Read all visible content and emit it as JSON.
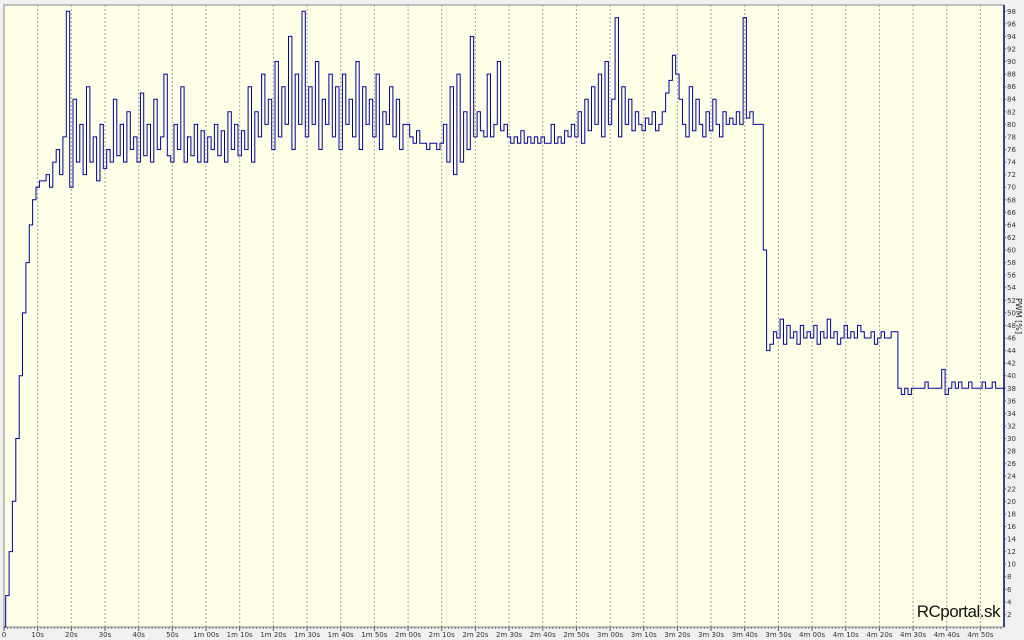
{
  "chart_data": {
    "type": "line",
    "title": "",
    "xlabel": "",
    "ylabel": "PWM [%]",
    "xlim": [
      0,
      297
    ],
    "ylim": [
      0,
      99
    ],
    "grid": {
      "vertical": true,
      "horizontal": false,
      "style": "dashed"
    },
    "y_axis_position": "right",
    "x_tick_labels": [
      "0",
      "10s",
      "20s",
      "30s",
      "40s",
      "50s",
      "1m 00s",
      "1m 10s",
      "1m 20s",
      "1m 30s",
      "1m 40s",
      "1m 50s",
      "2m 00s",
      "2m 10s",
      "2m 20s",
      "2m 30s",
      "2m 40s",
      "2m 50s",
      "3m 00s",
      "3m 10s",
      "3m 20s",
      "3m 30s",
      "3m 40s",
      "3m 50s",
      "4m 00s",
      "4m 10s",
      "4m 20s",
      "4m 30s",
      "4m 40s",
      "4m 50s"
    ],
    "y_ticks_step": 2,
    "x_unit": "seconds",
    "series": [
      {
        "color": "#0000A0",
        "values": [
          0,
          5,
          12,
          20,
          30,
          40,
          50,
          58,
          64,
          68,
          70,
          71,
          71,
          72,
          70,
          74,
          76,
          72,
          78,
          98,
          70,
          84,
          74,
          80,
          72,
          86,
          74,
          78,
          71,
          80,
          73,
          76,
          74,
          84,
          75,
          80,
          74,
          82,
          76,
          78,
          74,
          85,
          75,
          80,
          74,
          84,
          76,
          78,
          88,
          75,
          74,
          80,
          76,
          86,
          74,
          78,
          75,
          80,
          74,
          79,
          74,
          78,
          76,
          80,
          75,
          79,
          74,
          82,
          76,
          80,
          75,
          79,
          76,
          86,
          74,
          82,
          78,
          88,
          80,
          84,
          76,
          90,
          78,
          86,
          80,
          94,
          76,
          88,
          80,
          98,
          78,
          86,
          80,
          90,
          76,
          84,
          80,
          88,
          78,
          86,
          76,
          88,
          80,
          84,
          78,
          90,
          76,
          86,
          80,
          84,
          78,
          88,
          76,
          82,
          80,
          86,
          78,
          84,
          76,
          80,
          80,
          78,
          77,
          79,
          77,
          77,
          76,
          77,
          77,
          76,
          77,
          80,
          74,
          86,
          72,
          88,
          74,
          82,
          76,
          94,
          78,
          82,
          79,
          78,
          88,
          78,
          80,
          90,
          79,
          80,
          78,
          77,
          78,
          77,
          79,
          77,
          78,
          77,
          78,
          77,
          78,
          77,
          77,
          80,
          77,
          78,
          77,
          79,
          78,
          80,
          78,
          82,
          77,
          84,
          79,
          86,
          80,
          88,
          78,
          90,
          80,
          84,
          97,
          78,
          86,
          80,
          84,
          79,
          82,
          80,
          79,
          81,
          80,
          82,
          79,
          80,
          82,
          85,
          87,
          91,
          88,
          84,
          80,
          78,
          86,
          79,
          84,
          80,
          78,
          82,
          79,
          84,
          80,
          78,
          82,
          80,
          81,
          80,
          82,
          80,
          97,
          81,
          82,
          80,
          80,
          80,
          60,
          44,
          45,
          47,
          46,
          49,
          45,
          48,
          46,
          47,
          45,
          48,
          46,
          47,
          46,
          48,
          45,
          47,
          46,
          49,
          46,
          47,
          45,
          46,
          48,
          46,
          47,
          46,
          48,
          47,
          46,
          46,
          47,
          45,
          46,
          47,
          46,
          46,
          47,
          47,
          38,
          37,
          38,
          37,
          38,
          38,
          38,
          38,
          39,
          38,
          38,
          38,
          38,
          41,
          37,
          38,
          39,
          38,
          39,
          38,
          38,
          39,
          38,
          38,
          38,
          39,
          38,
          38,
          39,
          38,
          38,
          38
        ]
      }
    ]
  },
  "colors": {
    "plot_background": "#FFFFE8",
    "line": "#0000A0",
    "grid": "#A0A0A0"
  },
  "watermark": "RCportal.sk"
}
